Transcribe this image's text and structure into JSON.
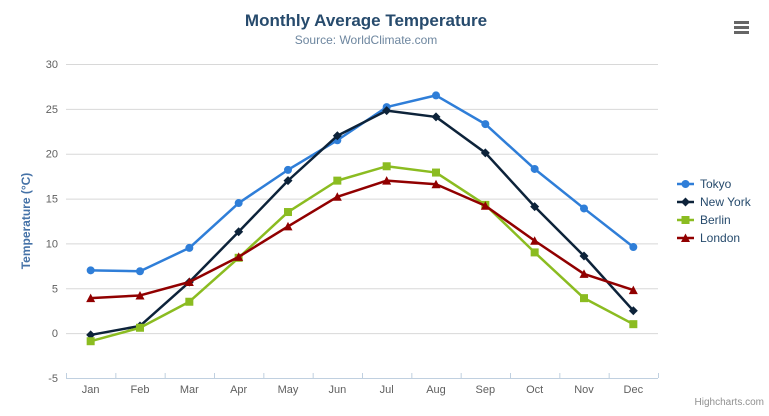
{
  "credits": "Highcharts.com",
  "styles": {
    "grid_color": "#D8D8D8",
    "axis_line_color": "#C0D0E0",
    "label_color": "#606060",
    "axis_title_color": "#4572A7",
    "title_color": "#274b6d",
    "subtitle_color": "#6D869F",
    "legend_text_color": "#274b6d",
    "credits_color": "#909090",
    "menu_icon_color": "#666666"
  },
  "chart_data": {
    "type": "line",
    "title": "Monthly Average Temperature",
    "subtitle": "Source: WorldClimate.com",
    "xlabel": "",
    "ylabel": "Temperature (°C)",
    "categories": [
      "Jan",
      "Feb",
      "Mar",
      "Apr",
      "May",
      "Jun",
      "Jul",
      "Aug",
      "Sep",
      "Oct",
      "Nov",
      "Dec"
    ],
    "series": [
      {
        "name": "Tokyo",
        "color": "#2f7ed8",
        "marker": "circle",
        "values": [
          7.0,
          6.9,
          9.5,
          14.5,
          18.2,
          21.5,
          25.2,
          26.5,
          23.3,
          18.3,
          13.9,
          9.6
        ]
      },
      {
        "name": "New York",
        "color": "#0d233a",
        "marker": "diamond",
        "values": [
          -0.2,
          0.8,
          5.7,
          11.3,
          17.0,
          22.0,
          24.8,
          24.1,
          20.1,
          14.1,
          8.6,
          2.5
        ]
      },
      {
        "name": "Berlin",
        "color": "#8bbc21",
        "marker": "square",
        "values": [
          -0.9,
          0.6,
          3.5,
          8.4,
          13.5,
          17.0,
          18.6,
          17.9,
          14.3,
          9.0,
          3.9,
          1.0
        ]
      },
      {
        "name": "London",
        "color": "#910000",
        "marker": "triangle",
        "values": [
          3.9,
          4.2,
          5.7,
          8.5,
          11.9,
          15.2,
          17.0,
          16.6,
          14.2,
          10.3,
          6.6,
          4.8
        ]
      }
    ],
    "ylim": [
      -5,
      30
    ],
    "ytick_step": 5,
    "grid": true,
    "legend_position": "right"
  }
}
